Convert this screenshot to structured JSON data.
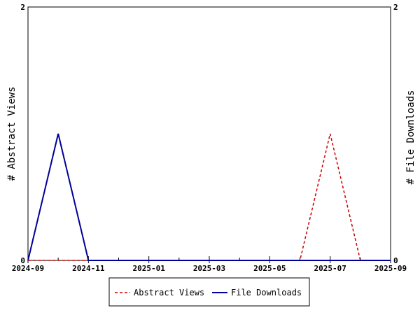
{
  "chart_data": {
    "type": "line",
    "x": [
      "2024-09",
      "2024-10",
      "2024-11",
      "2024-12",
      "2025-01",
      "2025-02",
      "2025-03",
      "2025-04",
      "2025-05",
      "2025-06",
      "2025-07",
      "2025-08",
      "2025-09"
    ],
    "series": [
      {
        "name": "Abstract Views",
        "values": [
          0,
          0,
          0,
          0,
          0,
          0,
          0,
          0,
          0,
          0,
          1,
          0,
          0
        ],
        "color": "#cc0000",
        "style": "dashed",
        "axis": "left"
      },
      {
        "name": "File Downloads",
        "values": [
          0,
          1,
          0,
          0,
          0,
          0,
          0,
          0,
          0,
          0,
          0,
          0,
          0
        ],
        "color": "#000099",
        "style": "solid",
        "axis": "right"
      }
    ],
    "xticks": [
      "2024-09",
      "2024-11",
      "2025-01",
      "2025-03",
      "2025-05",
      "2025-07",
      "2025-09"
    ],
    "ylim": [
      0,
      2
    ],
    "y2lim": [
      0,
      2
    ],
    "yticks": [
      "0",
      "2"
    ],
    "y2ticks": [
      "0",
      "2"
    ],
    "ylabel": "# Abstract Views",
    "y2label": "# File Downloads",
    "grid": false,
    "legend": "bottom"
  }
}
